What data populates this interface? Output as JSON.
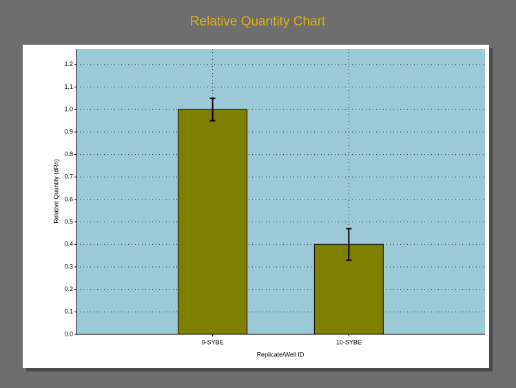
{
  "chart_data": {
    "type": "bar",
    "title": "Relative Quantity Chart",
    "x_label": "Replicate/Well ID",
    "y_label": "Relative Quantity (dRn)",
    "categories": [
      "9-SYBE",
      "10-SYBE"
    ],
    "values": [
      1.0,
      0.4
    ],
    "errors": [
      0.05,
      0.07
    ],
    "color": "#808000",
    "ylim": [
      0,
      1.27
    ],
    "yticks": [
      {
        "value": 0,
        "label": "0.0"
      },
      0.1,
      0.2,
      0.3,
      0.4,
      0.5,
      0.6,
      0.7,
      0.8,
      0.9,
      {
        "value": 1,
        "label": "1.0"
      },
      1.1,
      1.2
    ],
    "grid": true
  }
}
